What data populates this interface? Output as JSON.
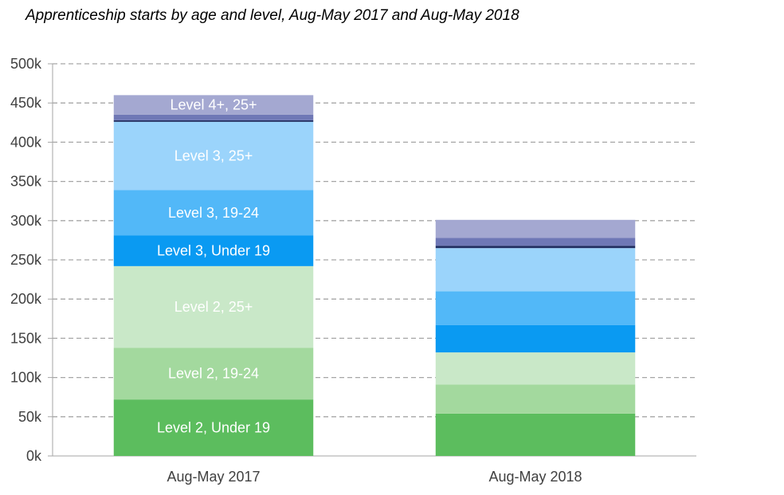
{
  "title": "Apprenticeship starts by age and level, Aug-May 2017 and Aug-May 2018",
  "chart_data": {
    "type": "bar",
    "stacked": true,
    "title": "Apprenticeship starts by age and level, Aug-May 2017 and Aug-May 2018",
    "categories": [
      "Aug-May 2017",
      "Aug-May 2018"
    ],
    "ylim": [
      0,
      500000
    ],
    "yticks": [
      0,
      50000,
      100000,
      150000,
      200000,
      250000,
      300000,
      350000,
      400000,
      450000,
      500000
    ],
    "ytick_labels": [
      "0k",
      "50k",
      "100k",
      "150k",
      "200k",
      "250k",
      "300k",
      "350k",
      "400k",
      "450k",
      "500k"
    ],
    "grid": true,
    "legend": "none",
    "series": [
      {
        "name": "Level 2, Under 19",
        "color": "#5cbd5e",
        "label_color": "#ffffff",
        "values": [
          72000,
          54000
        ]
      },
      {
        "name": "Level 2, 19-24",
        "color": "#a3d99e",
        "label_color": "#ffffff",
        "values": [
          66000,
          37000
        ]
      },
      {
        "name": "Level 2, 25+",
        "color": "#c9e8c8",
        "label_color": "#ffffff",
        "values": [
          104000,
          41000
        ]
      },
      {
        "name": "Level 3, Under 19",
        "color": "#0a9af2",
        "label_color": "#ffffff",
        "values": [
          39000,
          35000
        ]
      },
      {
        "name": "Level 3, 19-24",
        "color": "#52b8f8",
        "label_color": "#ffffff",
        "values": [
          58000,
          43000
        ]
      },
      {
        "name": "Level 3, 25+",
        "color": "#9bd4fb",
        "label_color": "#ffffff",
        "values": [
          87000,
          55000
        ]
      },
      {
        "name": "",
        "color": "#1f2d60",
        "label_color": "#ffffff",
        "values": [
          2000,
          3000
        ]
      },
      {
        "name": "",
        "color": "#6f78b6",
        "label_color": "#ffffff",
        "values": [
          7000,
          10000
        ]
      },
      {
        "name": "Level 4+, 25+",
        "color": "#a4a8d1",
        "label_color": "#ffffff",
        "values": [
          25000,
          23000
        ]
      }
    ]
  }
}
